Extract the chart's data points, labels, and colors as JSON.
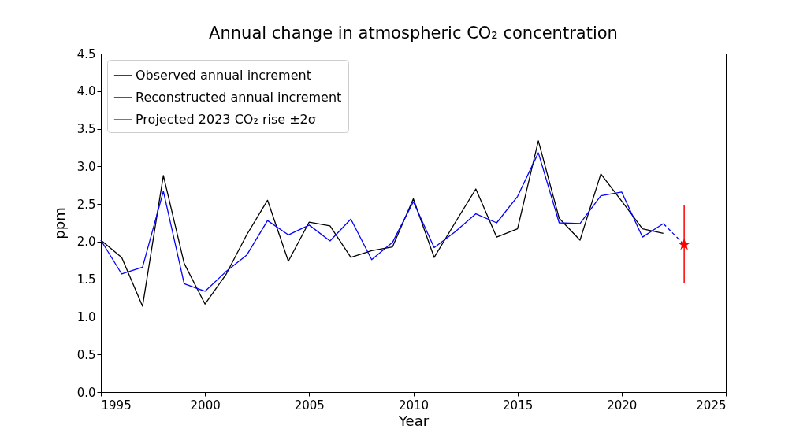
{
  "chart_data": {
    "type": "line",
    "title": "Annual change in atmospheric CO₂ concentration",
    "xlabel": "Year",
    "ylabel": "ppm",
    "xlim": [
      1995,
      2025
    ],
    "xticks": [
      1995,
      2000,
      2005,
      2010,
      2015,
      2020,
      2025
    ],
    "ylim": [
      0,
      4.5
    ],
    "yticks": [
      {
        "value": 0,
        "label": "0.0"
      },
      0.5,
      {
        "value": 1,
        "label": "1.0"
      },
      1.5,
      {
        "value": 2,
        "label": "2.0"
      },
      2.5,
      {
        "value": 3,
        "label": "3.0"
      },
      3.5,
      {
        "value": 4,
        "label": "4.0"
      },
      4.5
    ],
    "grid": false,
    "legend": "top left",
    "series": [
      {
        "name": "Observed annual increment",
        "color": "#000000",
        "x": [
          1995,
          1996,
          1997,
          1998,
          1999,
          2000,
          2001,
          2002,
          2003,
          2004,
          2005,
          2006,
          2007,
          2008,
          2009,
          2010,
          2011,
          2012,
          2013,
          2014,
          2015,
          2016,
          2017,
          2018,
          2019,
          2020,
          2021,
          2022
        ],
        "values": [
          2.02,
          1.79,
          1.14,
          2.88,
          1.71,
          1.17,
          1.56,
          2.09,
          2.55,
          1.74,
          2.26,
          2.21,
          1.79,
          1.88,
          1.93,
          2.57,
          1.79,
          2.25,
          2.7,
          2.06,
          2.17,
          3.34,
          2.31,
          2.02,
          2.9,
          2.54,
          2.17,
          2.11
        ]
      },
      {
        "name": "Reconstructed annual increment",
        "color": "#0000ff",
        "x": [
          1995,
          1996,
          1997,
          1998,
          1999,
          2000,
          2001,
          2002,
          2003,
          2004,
          2005,
          2006,
          2007,
          2008,
          2009,
          2010,
          2011,
          2012,
          2013,
          2014,
          2015,
          2016,
          2017,
          2018,
          2019,
          2020,
          2021,
          2022
        ],
        "values": [
          2.02,
          1.57,
          1.66,
          2.67,
          1.44,
          1.34,
          1.6,
          1.82,
          2.28,
          2.09,
          2.22,
          2.01,
          2.3,
          1.76,
          1.99,
          2.53,
          1.92,
          2.13,
          2.37,
          2.25,
          2.6,
          3.18,
          2.25,
          2.24,
          2.61,
          2.66,
          2.06,
          2.24
        ]
      },
      {
        "color": "#0000ff",
        "type": "line",
        "line_style": "dashed",
        "x": [
          2022,
          2023
        ],
        "values": [
          2.24,
          1.96
        ]
      },
      {
        "name": "Projected 2023 CO₂ rise ±2σ",
        "color": "#ff0000",
        "type": "scatter",
        "marker": "star",
        "x": [
          2023
        ],
        "values": [
          1.96
        ],
        "errors": [
          [
            1.45,
            2.48
          ]
        ]
      }
    ]
  }
}
